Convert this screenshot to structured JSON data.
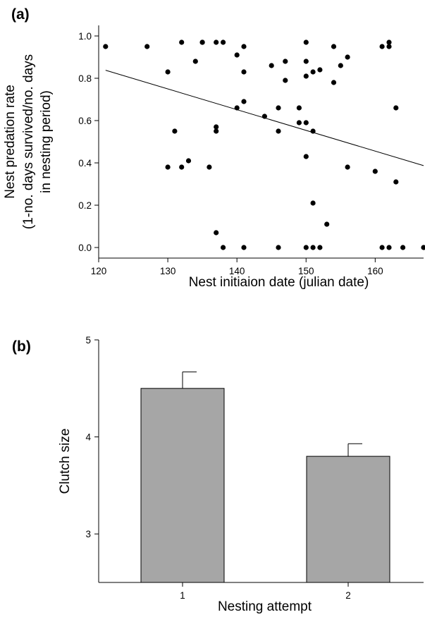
{
  "chart_data": [
    {
      "type": "scatter",
      "panel_label": "(a)",
      "xlabel": "Nest initiaion date (julian date)",
      "ylabel_lines": [
        "Nest predation rate",
        "(1-no. days survived/no. days",
        "in nesting period)"
      ],
      "xlim": [
        120,
        167
      ],
      "ylim": [
        -0.05,
        1.05
      ],
      "xticks": [
        120,
        130,
        140,
        150,
        160
      ],
      "yticks": [
        0.0,
        0.2,
        0.4,
        0.6,
        0.8,
        1.0
      ],
      "ytick_labels": [
        "0.0",
        "0.2",
        "0.4",
        "0.6",
        "0.8",
        "1.0"
      ],
      "grid": false,
      "points": [
        [
          121,
          0.95
        ],
        [
          127,
          0.95
        ],
        [
          130,
          0.83
        ],
        [
          130,
          0.38
        ],
        [
          131,
          0.55
        ],
        [
          132,
          0.97
        ],
        [
          132,
          0.38
        ],
        [
          133,
          0.41
        ],
        [
          134,
          0.88
        ],
        [
          135,
          0.97
        ],
        [
          135,
          0.97
        ],
        [
          136,
          0.38
        ],
        [
          137,
          0.97
        ],
        [
          137,
          0.57
        ],
        [
          137,
          0.55
        ],
        [
          137,
          0.07
        ],
        [
          138,
          0.97
        ],
        [
          138,
          0.0
        ],
        [
          140,
          0.91
        ],
        [
          140,
          0.66
        ],
        [
          141,
          0.95
        ],
        [
          141,
          0.83
        ],
        [
          141,
          0.69
        ],
        [
          141,
          0.0
        ],
        [
          144,
          0.62
        ],
        [
          145,
          0.86
        ],
        [
          146,
          0.66
        ],
        [
          146,
          0.55
        ],
        [
          146,
          0.0
        ],
        [
          147,
          0.88
        ],
        [
          147,
          0.79
        ],
        [
          149,
          0.66
        ],
        [
          149,
          0.59
        ],
        [
          150,
          0.97
        ],
        [
          150,
          0.88
        ],
        [
          150,
          0.81
        ],
        [
          150,
          0.59
        ],
        [
          150,
          0.43
        ],
        [
          150,
          0.0
        ],
        [
          151,
          0.83
        ],
        [
          151,
          0.55
        ],
        [
          151,
          0.21
        ],
        [
          151,
          0.0
        ],
        [
          152,
          0.84
        ],
        [
          152,
          0.0
        ],
        [
          153,
          0.11
        ],
        [
          154,
          0.95
        ],
        [
          154,
          0.78
        ],
        [
          155,
          0.86
        ],
        [
          156,
          0.9
        ],
        [
          156,
          0.38
        ],
        [
          160,
          0.36
        ],
        [
          161,
          0.95
        ],
        [
          161,
          0.0
        ],
        [
          162,
          0.97
        ],
        [
          162,
          0.95
        ],
        [
          162,
          0.0
        ],
        [
          163,
          0.66
        ],
        [
          163,
          0.31
        ],
        [
          164,
          0.0
        ],
        [
          167,
          0.0
        ]
      ],
      "regression_line": {
        "x": [
          121,
          167
        ],
        "y": [
          0.838,
          0.387
        ]
      }
    },
    {
      "type": "bar",
      "panel_label": "(b)",
      "xlabel": "Nesting attempt",
      "ylabel": "Clutch size",
      "categories": [
        "1",
        "2"
      ],
      "values": [
        4.5,
        3.8
      ],
      "error_upper": [
        4.67,
        3.93
      ],
      "ylim": [
        2.5,
        5.0
      ],
      "yticks": [
        3,
        4,
        5
      ],
      "ytick_labels": [
        "3",
        "4",
        "5"
      ],
      "bar_color": "#a6a6a6",
      "grid": false
    }
  ]
}
